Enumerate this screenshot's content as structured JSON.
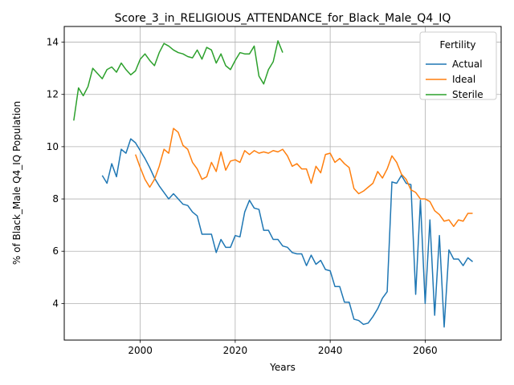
{
  "chart_data": {
    "type": "line",
    "title": "Score_3_in_RELIGIOUS_ATTENDANCE_for_Black_Male_Q4_IQ",
    "xlabel": "Years",
    "ylabel": "% of Black_Male Q4_IQ Population",
    "xlim": [
      1984,
      2076
    ],
    "ylim": [
      2.6,
      14.6
    ],
    "xticks": [
      2000,
      2020,
      2040,
      2060
    ],
    "yticks": [
      4,
      6,
      8,
      10,
      12,
      14
    ],
    "grid": true,
    "legend": {
      "title": "Fertility",
      "placement": "top-right"
    },
    "series": [
      {
        "name": "Actual",
        "color": "#1f77b4",
        "x": [
          1992,
          1993,
          1994,
          1995,
          1996,
          1997,
          1998,
          1999,
          2000,
          2001,
          2002,
          2003,
          2004,
          2005,
          2006,
          2007,
          2008,
          2009,
          2010,
          2011,
          2012,
          2013,
          2014,
          2015,
          2016,
          2017,
          2018,
          2019,
          2020,
          2021,
          2022,
          2023,
          2024,
          2025,
          2026,
          2027,
          2028,
          2029,
          2030,
          2031,
          2032,
          2033,
          2034,
          2035,
          2036,
          2037,
          2038,
          2039,
          2040,
          2041,
          2042,
          2043,
          2044,
          2045,
          2046,
          2047,
          2048,
          2049,
          2050,
          2051,
          2052,
          2053,
          2054,
          2055,
          2056,
          2057,
          2058,
          2059,
          2060,
          2061,
          2062,
          2063,
          2064,
          2065,
          2066,
          2067,
          2068,
          2069,
          2070
        ],
        "values": [
          8.9,
          8.6,
          9.35,
          8.85,
          9.9,
          9.75,
          10.3,
          10.15,
          9.85,
          9.55,
          9.2,
          8.8,
          8.5,
          8.25,
          8.0,
          8.2,
          8.0,
          7.8,
          7.75,
          7.5,
          7.35,
          6.65,
          6.65,
          6.65,
          5.95,
          6.45,
          6.15,
          6.15,
          6.6,
          6.55,
          7.5,
          7.95,
          7.65,
          7.6,
          6.8,
          6.8,
          6.45,
          6.45,
          6.2,
          6.15,
          5.95,
          5.9,
          5.9,
          5.45,
          5.85,
          5.5,
          5.65,
          5.3,
          5.25,
          4.65,
          4.65,
          4.05,
          4.05,
          3.4,
          3.35,
          3.2,
          3.25,
          3.5,
          3.8,
          4.2,
          4.45,
          8.65,
          8.6,
          8.9,
          8.6,
          8.55,
          4.35,
          7.95,
          4.0,
          7.2,
          3.55,
          6.6,
          3.1,
          6.05,
          5.7,
          5.7,
          5.45,
          5.75,
          5.6
        ]
      },
      {
        "name": "Ideal",
        "color": "#ff7f0e",
        "x": [
          1999,
          2000,
          2001,
          2002,
          2003,
          2004,
          2005,
          2006,
          2007,
          2008,
          2009,
          2010,
          2011,
          2012,
          2013,
          2014,
          2015,
          2016,
          2017,
          2018,
          2019,
          2020,
          2021,
          2022,
          2023,
          2024,
          2025,
          2026,
          2027,
          2028,
          2029,
          2030,
          2031,
          2032,
          2033,
          2034,
          2035,
          2036,
          2037,
          2038,
          2039,
          2040,
          2041,
          2042,
          2043,
          2044,
          2045,
          2046,
          2047,
          2048,
          2049,
          2050,
          2051,
          2052,
          2053,
          2054,
          2055,
          2056,
          2057,
          2058,
          2059,
          2060,
          2061,
          2062,
          2063,
          2064,
          2065,
          2066,
          2067,
          2068,
          2069,
          2070
        ],
        "values": [
          9.7,
          9.2,
          8.75,
          8.45,
          8.75,
          9.25,
          9.9,
          9.75,
          10.7,
          10.55,
          10.05,
          9.9,
          9.4,
          9.15,
          8.75,
          8.85,
          9.4,
          9.05,
          9.8,
          9.1,
          9.45,
          9.5,
          9.4,
          9.85,
          9.7,
          9.85,
          9.75,
          9.8,
          9.75,
          9.85,
          9.8,
          9.9,
          9.65,
          9.25,
          9.35,
          9.15,
          9.15,
          8.6,
          9.25,
          9.0,
          9.7,
          9.75,
          9.4,
          9.55,
          9.35,
          9.2,
          8.4,
          8.2,
          8.3,
          8.45,
          8.6,
          9.05,
          8.8,
          9.15,
          9.65,
          9.4,
          8.95,
          8.75,
          8.35,
          8.25,
          8.0,
          8.0,
          7.9,
          7.55,
          7.4,
          7.15,
          7.2,
          6.95,
          7.2,
          7.15,
          7.45,
          7.45
        ]
      },
      {
        "name": "Sterile",
        "color": "#2ca02c",
        "x": [
          1986,
          1987,
          1988,
          1989,
          1990,
          1991,
          1992,
          1993,
          1994,
          1995,
          1996,
          1997,
          1998,
          1999,
          2000,
          2001,
          2002,
          2003,
          2004,
          2005,
          2006,
          2007,
          2008,
          2009,
          2010,
          2011,
          2012,
          2013,
          2014,
          2015,
          2016,
          2017,
          2018,
          2019,
          2020,
          2021,
          2022,
          2023,
          2024,
          2025,
          2026,
          2027,
          2028,
          2029,
          2030
        ],
        "values": [
          11.0,
          12.25,
          11.95,
          12.3,
          13.0,
          12.8,
          12.6,
          12.95,
          13.05,
          12.85,
          13.2,
          12.95,
          12.75,
          12.9,
          13.35,
          13.55,
          13.3,
          13.1,
          13.6,
          13.95,
          13.85,
          13.7,
          13.6,
          13.55,
          13.45,
          13.4,
          13.7,
          13.35,
          13.8,
          13.7,
          13.2,
          13.55,
          13.1,
          12.95,
          13.3,
          13.6,
          13.55,
          13.55,
          13.85,
          12.7,
          12.4,
          12.95,
          13.25,
          14.05,
          13.6
        ]
      }
    ]
  }
}
